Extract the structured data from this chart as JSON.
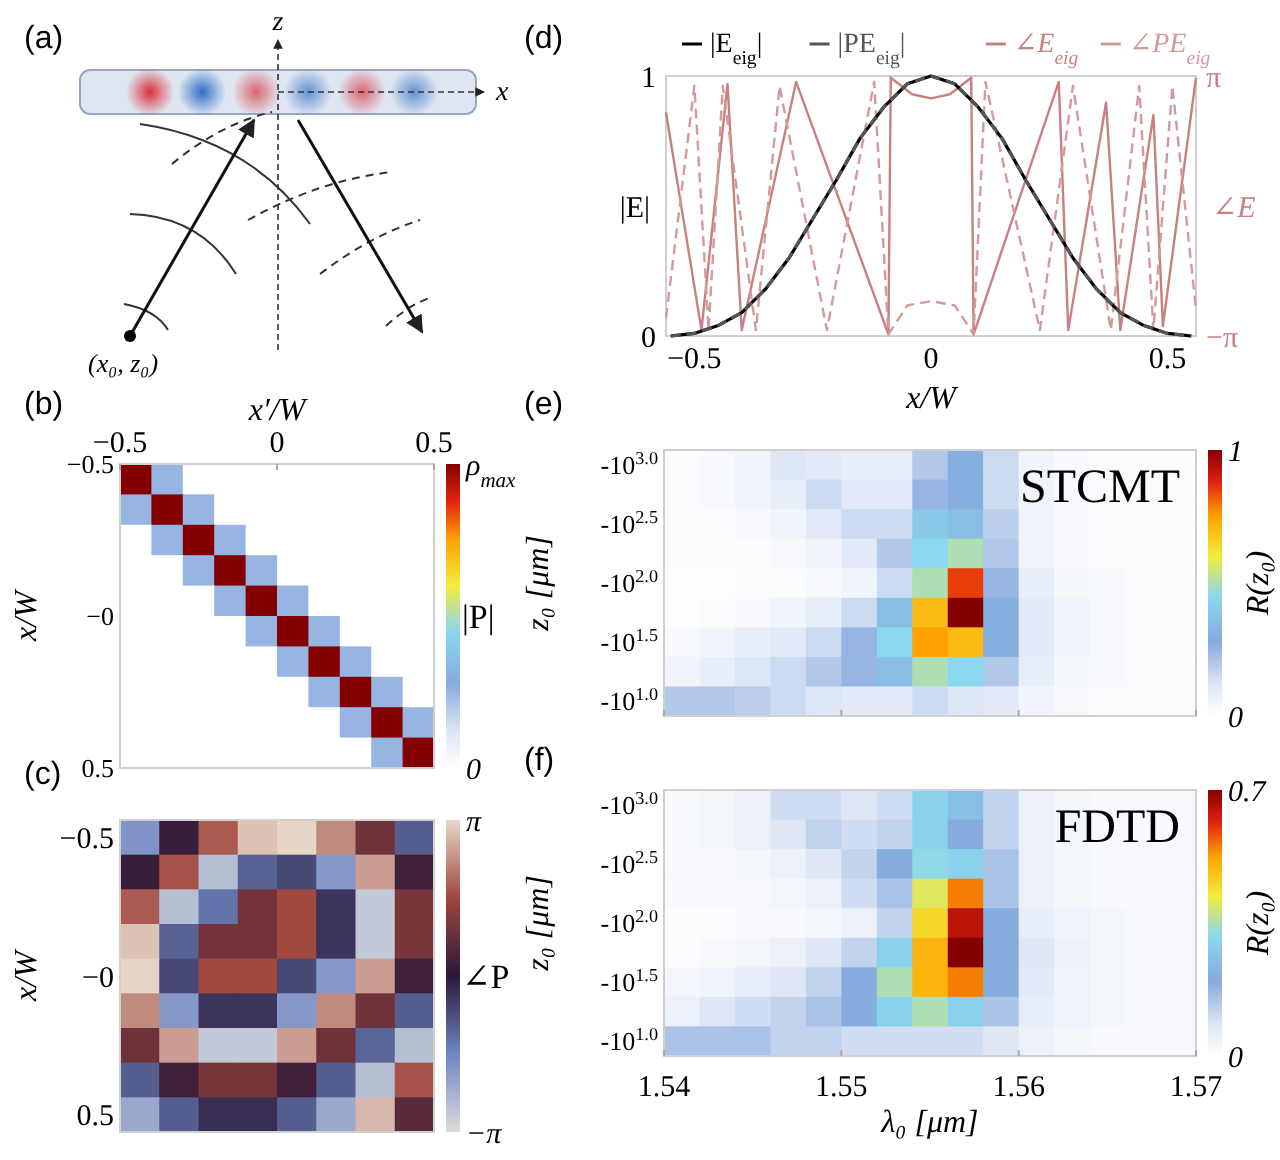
{
  "chart_data": [
    {
      "type": "other",
      "title": "(a)",
      "annotations": [
        "z",
        "x",
        "(x₀, z₀)"
      ]
    },
    {
      "type": "line",
      "title": "(d)",
      "xlabel": "x/W",
      "ylabel": "|E|",
      "y2label": "∠E",
      "xlim": [
        -0.56,
        0.56
      ],
      "xticks": [
        {
          "value": -0.5,
          "label": "−0.5"
        },
        0,
        0.5
      ],
      "ylim": [
        0,
        1
      ],
      "yticks": [
        0,
        1
      ],
      "y2lim": [
        -3.1416,
        3.1416
      ],
      "y2ticks": [
        {
          "value": -3.1416,
          "label": "−π"
        },
        {
          "value": 3.1416,
          "label": "π"
        }
      ],
      "legend": "top",
      "grid": false,
      "marker": "none",
      "series": [
        {
          "name": "|E$_{eig}$|",
          "color": "#000000",
          "line_style": "solid",
          "x": [
            -0.55,
            -0.5,
            -0.45,
            -0.4,
            -0.35,
            -0.3,
            -0.25,
            -0.2,
            -0.15,
            -0.1,
            -0.05,
            0,
            0.05,
            0.1,
            0.15,
            0.2,
            0.25,
            0.3,
            0.35,
            0.4,
            0.45,
            0.5,
            0.55
          ],
          "values": [
            0,
            0.01,
            0.04,
            0.09,
            0.18,
            0.3,
            0.45,
            0.6,
            0.76,
            0.88,
            0.97,
            1,
            0.97,
            0.88,
            0.76,
            0.6,
            0.45,
            0.3,
            0.18,
            0.09,
            0.04,
            0.01,
            0
          ]
        },
        {
          "name": "|PE$_{eig}$|",
          "color": "#555555",
          "line_style": "dashed",
          "x": [
            -0.55,
            -0.5,
            -0.45,
            -0.4,
            -0.35,
            -0.3,
            -0.25,
            -0.2,
            -0.15,
            -0.1,
            -0.05,
            0,
            0.05,
            0.1,
            0.15,
            0.2,
            0.25,
            0.3,
            0.35,
            0.4,
            0.45,
            0.5,
            0.55
          ],
          "values": [
            0,
            0.01,
            0.04,
            0.09,
            0.18,
            0.3,
            0.45,
            0.6,
            0.76,
            0.88,
            0.97,
            1,
            0.97,
            0.88,
            0.76,
            0.6,
            0.45,
            0.3,
            0.18,
            0.09,
            0.04,
            0.01,
            0
          ]
        },
        {
          "name": "∠E$_{eig}$",
          "color": "#c98080",
          "line_style": "solid",
          "axis": "y2",
          "x": [
            -0.56,
            -0.485,
            -0.43,
            -0.4,
            -0.285,
            -0.09,
            -0.085,
            -0.04,
            0,
            0.04,
            0.085,
            0.09,
            0.27,
            0.29,
            0.37,
            0.4,
            0.47,
            0.49,
            0.56
          ],
          "values": [
            2.26,
            -3.0,
            2.95,
            -3.0,
            3.0,
            -3.1,
            3.1,
            2.7,
            2.6,
            2.7,
            3.1,
            -3.1,
            3.0,
            -3.0,
            2.5,
            -3.0,
            2.2,
            -2.9,
            3.1
          ]
        },
        {
          "name": "∠PE$_{eig}$",
          "color": "#d49a9a",
          "line_style": "dashed",
          "axis": "y2",
          "x": [
            -0.56,
            -0.5,
            -0.47,
            -0.44,
            -0.37,
            -0.32,
            -0.22,
            -0.12,
            -0.09,
            -0.05,
            0,
            0.05,
            0.09,
            0.115,
            0.23,
            0.3,
            0.38,
            0.44,
            0.47,
            0.51,
            0.56
          ],
          "values": [
            -2.7,
            2.9,
            -3.0,
            2.9,
            -3.0,
            2.9,
            -3.0,
            3.0,
            -3.1,
            -2.4,
            -2.3,
            -2.4,
            -3.1,
            3.0,
            -3.0,
            2.9,
            -3.0,
            2.9,
            -3.0,
            2.9,
            -2.5
          ]
        }
      ]
    },
    {
      "type": "heatmap",
      "title": "(b)",
      "xlabel": "x′/W",
      "ylabel": "x/W",
      "clabel": "|P|",
      "xlim": [
        -0.5,
        0.5
      ],
      "xticks": [
        {
          "value": -0.5,
          "label": "−0.5"
        },
        0,
        0.5
      ],
      "ylim": [
        0.5,
        -0.5
      ],
      "yticks": [
        {
          "value": -0.5,
          "label": "−0.5"
        },
        {
          "value": 0,
          "label": "−0"
        },
        0.5
      ],
      "clim": [
        0,
        1
      ],
      "cticks": [
        0,
        {
          "value": 1,
          "label": "ρ$_{max}$"
        }
      ],
      "x": [
        -0.45,
        -0.35,
        -0.25,
        -0.15,
        -0.05,
        0.05,
        0.15,
        0.25,
        0.35,
        0.45
      ],
      "y": [
        -0.45,
        -0.35,
        -0.25,
        -0.15,
        -0.05,
        0.05,
        0.15,
        0.25,
        0.35,
        0.45
      ],
      "cells": [
        [
          1,
          0.25,
          0,
          0,
          0,
          0,
          0,
          0,
          0,
          0
        ],
        [
          0.25,
          1,
          0.25,
          0,
          0,
          0,
          0,
          0,
          0,
          0
        ],
        [
          0,
          0.25,
          1,
          0.25,
          0,
          0,
          0,
          0,
          0,
          0
        ],
        [
          0,
          0,
          0.25,
          1,
          0.25,
          0,
          0,
          0,
          0,
          0
        ],
        [
          0,
          0,
          0,
          0.25,
          1,
          0.25,
          0,
          0,
          0,
          0
        ],
        [
          0,
          0,
          0,
          0,
          0.25,
          1,
          0.25,
          0,
          0,
          0
        ],
        [
          0,
          0,
          0,
          0,
          0,
          0.25,
          1,
          0.25,
          0,
          0
        ],
        [
          0,
          0,
          0,
          0,
          0,
          0,
          0.25,
          1,
          0.25,
          0
        ],
        [
          0,
          0,
          0,
          0,
          0,
          0,
          0,
          0.25,
          1,
          0.25
        ],
        [
          0,
          0,
          0,
          0,
          0,
          0,
          0,
          0,
          0.25,
          1
        ]
      ]
    },
    {
      "type": "heatmap",
      "title": "(e)",
      "ylabel": "z₀ [μm]",
      "clabel": "R(z₀)",
      "tick_labels": "y",
      "annotations": [
        "STCMT"
      ],
      "xlim": [
        1.54,
        1.57
      ],
      "xticks": [
        1.54,
        1.55,
        1.56,
        1.57
      ],
      "y_categories": [
        "-10$^{3.0}$",
        null,
        "-10$^{2.5}$",
        null,
        "-10$^{2.0}$",
        null,
        "-10$^{1.5}$",
        null,
        "-10$^{1.0}$"
      ],
      "clim": [
        0,
        1
      ],
      "cticks": [
        0,
        1
      ],
      "x": [
        1.541,
        1.543,
        1.545,
        1.547,
        1.549,
        1.551,
        1.553,
        1.555,
        1.557,
        1.559,
        1.561,
        1.563,
        1.565,
        1.567,
        1.569
      ],
      "cells": [
        [
          0.02,
          0.03,
          0.05,
          0.12,
          0.1,
          0.08,
          0.08,
          0.2,
          0.3,
          0.15,
          0.05,
          0.03,
          0.02,
          0.02,
          0.02
        ],
        [
          0.02,
          0.03,
          0.05,
          0.08,
          0.15,
          0.1,
          0.1,
          0.25,
          0.3,
          0.15,
          0.05,
          0.03,
          0.02,
          0.02,
          0.02
        ],
        [
          0.02,
          0.02,
          0.03,
          0.05,
          0.1,
          0.15,
          0.15,
          0.4,
          0.35,
          0.18,
          0.05,
          0.03,
          0.02,
          0.02,
          0.02
        ],
        [
          0.02,
          0.02,
          0.02,
          0.03,
          0.05,
          0.1,
          0.2,
          0.45,
          0.5,
          0.2,
          0.05,
          0.03,
          0.02,
          0.02,
          0.02
        ],
        [
          0.01,
          0.01,
          0.02,
          0.02,
          0.03,
          0.05,
          0.15,
          0.5,
          0.85,
          0.25,
          0.08,
          0.04,
          0.03,
          0.02,
          0.02
        ],
        [
          0.01,
          0.02,
          0.03,
          0.05,
          0.08,
          0.15,
          0.35,
          0.7,
          1.0,
          0.3,
          0.1,
          0.05,
          0.03,
          0.02,
          0.02
        ],
        [
          0.03,
          0.05,
          0.08,
          0.1,
          0.15,
          0.25,
          0.45,
          0.75,
          0.7,
          0.3,
          0.1,
          0.05,
          0.03,
          0.02,
          0.02
        ],
        [
          0.05,
          0.08,
          0.12,
          0.15,
          0.2,
          0.25,
          0.35,
          0.5,
          0.45,
          0.2,
          0.08,
          0.04,
          0.03,
          0.02,
          0.02
        ],
        [
          0.2,
          0.2,
          0.18,
          0.15,
          0.12,
          0.1,
          0.1,
          0.15,
          0.12,
          0.1,
          0.05,
          0.03,
          0.02,
          0.02,
          0.02
        ]
      ]
    },
    {
      "type": "heatmap",
      "title": "(c)",
      "ylabel": "x/W",
      "clabel": "∠P",
      "clim": [
        -3.1416,
        3.1416
      ],
      "cticks": [
        {
          "value": -3.1416,
          "label": "−π"
        },
        {
          "value": 3.1416,
          "label": "π"
        }
      ],
      "categories": [
        null,
        null,
        null,
        null,
        null,
        null,
        null,
        null
      ],
      "y_categories": [
        "−0.5",
        null,
        null,
        null,
        "−0",
        null,
        null,
        null,
        "0.5"
      ],
      "cells": [
        [
          -1.8,
          0.2,
          1.8,
          2.9,
          3.1,
          2.3,
          0.9,
          -1.0
        ],
        [
          0.2,
          1.7,
          -2.6,
          -1.05,
          -0.7,
          -1.9,
          2.5,
          0.3
        ],
        [
          1.8,
          -2.6,
          -1.3,
          0.95,
          1.6,
          -0.4,
          -2.8,
          1.0
        ],
        [
          2.9,
          -1.05,
          0.95,
          0.95,
          1.6,
          -0.4,
          -2.8,
          1.0
        ],
        [
          3.1,
          -0.7,
          1.6,
          1.6,
          -0.7,
          -1.9,
          2.5,
          0.3
        ],
        [
          2.3,
          -1.9,
          -0.4,
          -0.4,
          -1.9,
          2.3,
          0.9,
          -1.0
        ],
        [
          0.9,
          2.5,
          -2.8,
          -2.8,
          2.5,
          0.9,
          -1.1,
          -2.6
        ],
        [
          -1.0,
          0.3,
          1.0,
          1.0,
          0.3,
          -1.0,
          -2.6,
          1.7
        ],
        [
          -2.2,
          -1.0,
          -0.3,
          -0.3,
          -1.0,
          -2.2,
          2.8,
          0.6
        ]
      ]
    },
    {
      "type": "heatmap",
      "title": "(f)",
      "xlabel": "λ₀ [μm]",
      "ylabel": "z₀ [μm]",
      "clabel": "R(z₀)",
      "annotations": [
        "FDTD"
      ],
      "xlim": [
        1.54,
        1.57
      ],
      "xticks": [
        1.54,
        1.55,
        1.56,
        1.57
      ],
      "y_categories": [
        "-10$^{3.0}$",
        null,
        "-10$^{2.5}$",
        null,
        "-10$^{2.0}$",
        null,
        "-10$^{1.5}$",
        null,
        "-10$^{1.0}$"
      ],
      "clim": [
        0,
        0.7
      ],
      "cticks": [
        0,
        0.7
      ],
      "x": [
        1.541,
        1.543,
        1.545,
        1.547,
        1.549,
        1.551,
        1.553,
        1.555,
        1.557,
        1.559,
        1.561,
        1.563,
        1.565,
        1.567,
        1.569
      ],
      "cells": [
        [
          0.02,
          0.03,
          0.05,
          0.1,
          0.1,
          0.08,
          0.1,
          0.3,
          0.25,
          0.12,
          0.05,
          0.03,
          0.02,
          0.02,
          0.02
        ],
        [
          0.02,
          0.03,
          0.05,
          0.08,
          0.12,
          0.1,
          0.12,
          0.3,
          0.2,
          0.12,
          0.05,
          0.03,
          0.02,
          0.02,
          0.02
        ],
        [
          0.02,
          0.02,
          0.03,
          0.05,
          0.08,
          0.12,
          0.2,
          0.32,
          0.3,
          0.15,
          0.05,
          0.03,
          0.02,
          0.02,
          0.02
        ],
        [
          0.02,
          0.02,
          0.02,
          0.03,
          0.05,
          0.1,
          0.15,
          0.4,
          0.55,
          0.15,
          0.05,
          0.03,
          0.02,
          0.02,
          0.02
        ],
        [
          0.01,
          0.01,
          0.02,
          0.02,
          0.03,
          0.05,
          0.12,
          0.45,
          0.65,
          0.2,
          0.06,
          0.04,
          0.03,
          0.02,
          0.02
        ],
        [
          0.01,
          0.02,
          0.03,
          0.05,
          0.08,
          0.12,
          0.3,
          0.5,
          0.7,
          0.2,
          0.08,
          0.05,
          0.03,
          0.02,
          0.02
        ],
        [
          0.03,
          0.04,
          0.06,
          0.08,
          0.12,
          0.2,
          0.35,
          0.5,
          0.55,
          0.2,
          0.07,
          0.04,
          0.03,
          0.02,
          0.02
        ],
        [
          0.05,
          0.08,
          0.1,
          0.12,
          0.15,
          0.2,
          0.3,
          0.35,
          0.3,
          0.15,
          0.06,
          0.04,
          0.03,
          0.02,
          0.02
        ],
        [
          0.15,
          0.15,
          0.15,
          0.12,
          0.12,
          0.1,
          0.1,
          0.1,
          0.1,
          0.08,
          0.05,
          0.03,
          0.02,
          0.02,
          0.02
        ]
      ]
    }
  ]
}
